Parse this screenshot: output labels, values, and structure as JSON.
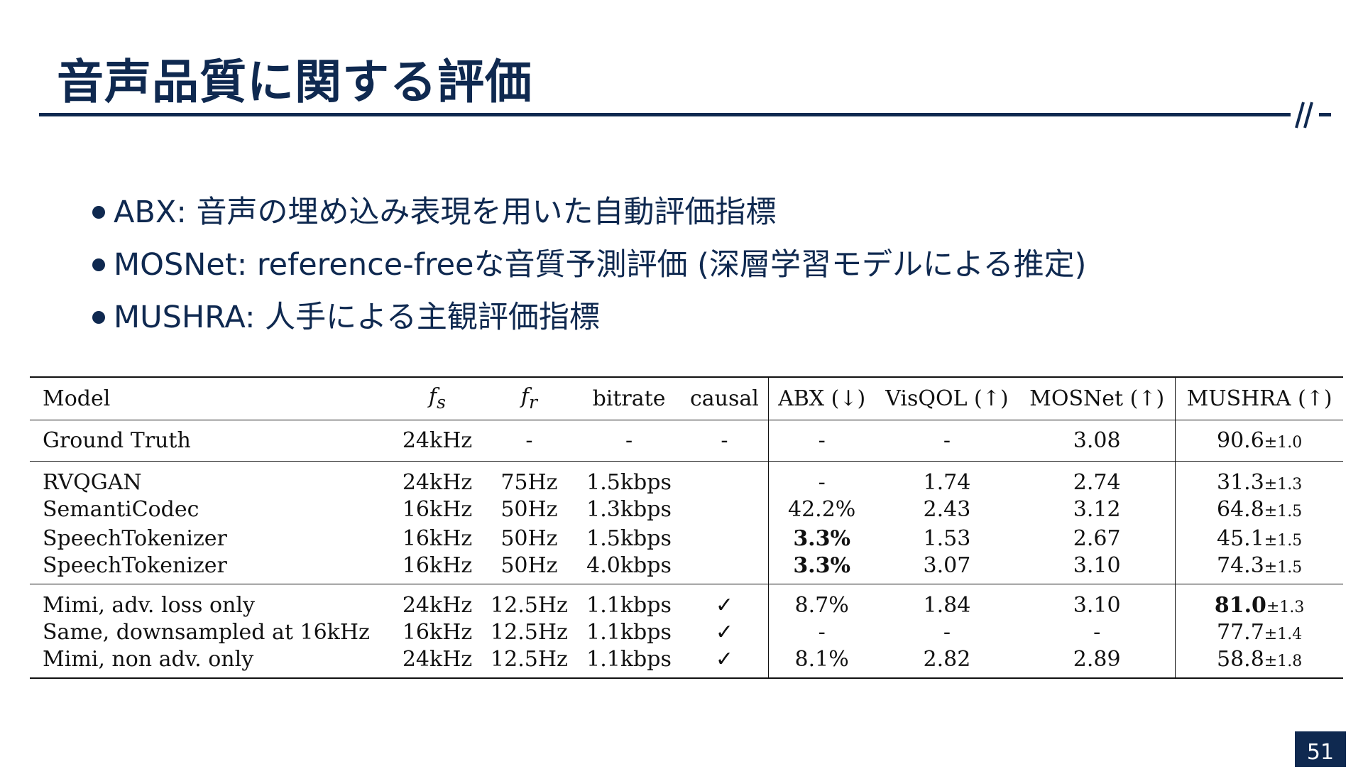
{
  "title": "音声品質に関する評価",
  "bullets": [
    "ABX: 音声の埋め込み表現を用いた自動評価指標",
    "MOSNet: reference-freeな音質予測評価 (深層学習モデルによる推定)",
    "MUSHRA: 人手による主観評価指標"
  ],
  "table": {
    "headers": {
      "model": "Model",
      "fs_base": "f",
      "fs_sub": "s",
      "fr_base": "f",
      "fr_sub": "r",
      "bitrate": "bitrate",
      "causal": "causal",
      "abx": "ABX (↓)",
      "visqol": "VisQOL (↑)",
      "mosnet": "MOSNet (↑)",
      "mushra": "MUSHRA (↑)"
    },
    "rows": [
      {
        "model": "Ground Truth",
        "fs": "24kHz",
        "fr": "-",
        "bitrate": "-",
        "causal": "-",
        "abx": "-",
        "visqol": "-",
        "mosnet": "3.08",
        "mushra": "90.6",
        "mushra_sd": "±1.0"
      },
      {
        "model": "RVQGAN",
        "fs": "24kHz",
        "fr": "75Hz",
        "bitrate": "1.5kbps",
        "causal": "",
        "abx": "-",
        "visqol": "1.74",
        "mosnet": "2.74",
        "mushra": "31.3",
        "mushra_sd": "±1.3"
      },
      {
        "model": "SemantiCodec",
        "fs": "16kHz",
        "fr": "50Hz",
        "bitrate": "1.3kbps",
        "causal": "",
        "abx": "42.2%",
        "visqol": "2.43",
        "mosnet": "3.12",
        "mushra": "64.8",
        "mushra_sd": "±1.5"
      },
      {
        "model": "SpeechTokenizer",
        "fs": "16kHz",
        "fr": "50Hz",
        "bitrate": "1.5kbps",
        "causal": "",
        "abx": "3.3%",
        "visqol": "1.53",
        "mosnet": "2.67",
        "mushra": "45.1",
        "mushra_sd": "±1.5"
      },
      {
        "model": "SpeechTokenizer",
        "fs": "16kHz",
        "fr": "50Hz",
        "bitrate": "4.0kbps",
        "causal": "",
        "abx": "3.3%",
        "visqol": "3.07",
        "mosnet": "3.10",
        "mushra": "74.3",
        "mushra_sd": "±1.5"
      },
      {
        "model": "Mimi, adv. loss only",
        "fs": "24kHz",
        "fr": "12.5Hz",
        "bitrate": "1.1kbps",
        "causal": "✓",
        "abx": "8.7%",
        "visqol": "1.84",
        "mosnet": "3.10",
        "mushra": "81.0",
        "mushra_sd": "±1.3"
      },
      {
        "model": "Same, downsampled at 16kHz",
        "fs": "16kHz",
        "fr": "12.5Hz",
        "bitrate": "1.1kbps",
        "causal": "✓",
        "abx": "-",
        "visqol": "-",
        "mosnet": "-",
        "mushra": "77.7",
        "mushra_sd": "±1.4"
      },
      {
        "model": "Mimi, non adv. only",
        "fs": "24kHz",
        "fr": "12.5Hz",
        "bitrate": "1.1kbps",
        "causal": "✓",
        "abx": "8.1%",
        "visqol": "2.82",
        "mosnet": "2.89",
        "mushra": "58.8",
        "mushra_sd": "±1.8"
      }
    ]
  },
  "page_number": "51",
  "colors": {
    "primary": "#0f2950"
  }
}
